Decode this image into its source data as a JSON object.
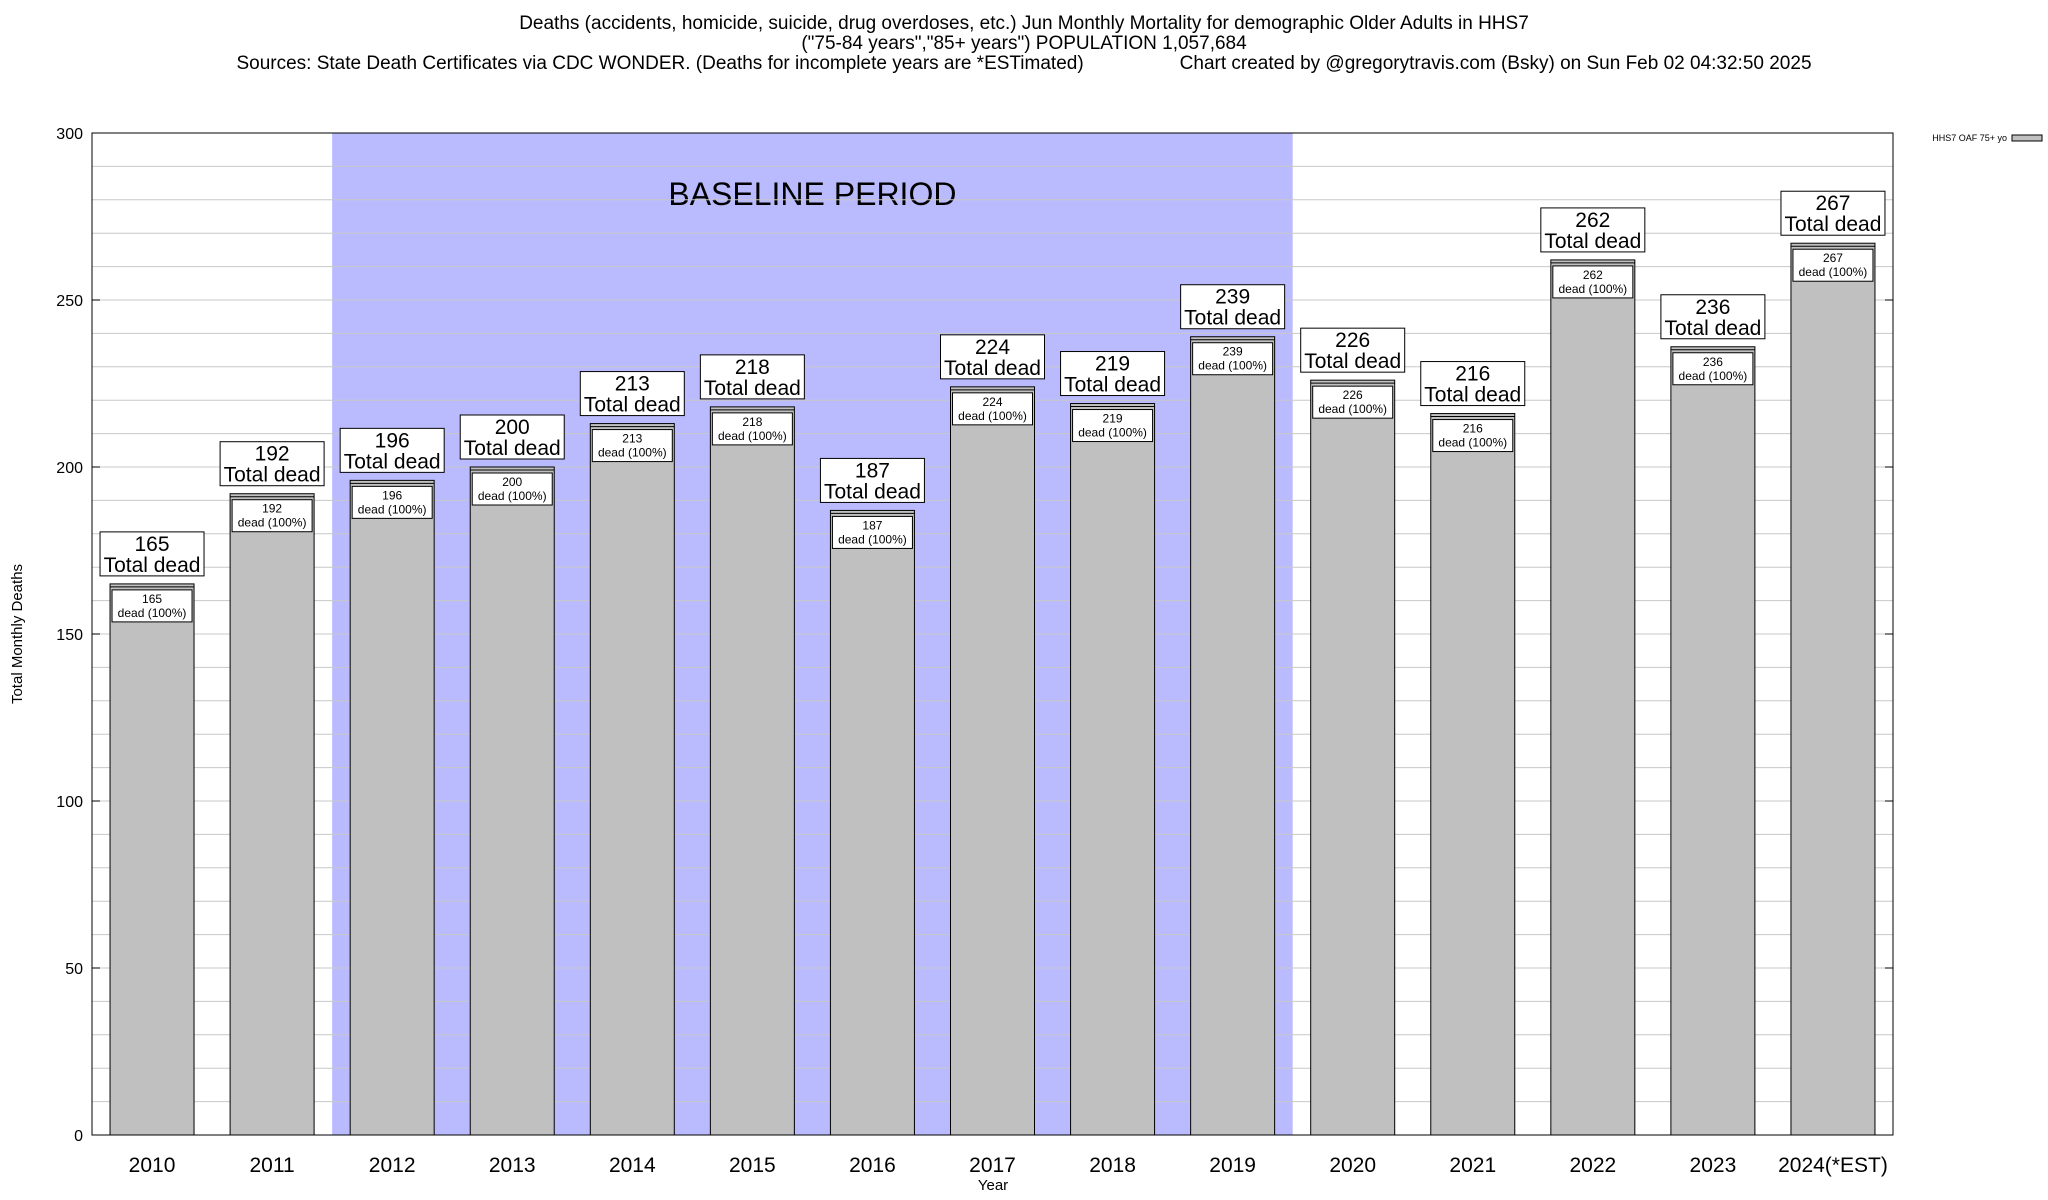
{
  "chart_data": {
    "type": "bar",
    "title": "Deaths (accidents, homicide, suicide, drug overdoses, etc.) Jun Monthly Mortality for demographic Older Adults in HHS7",
    "subtitle": "(\"75-84 years\",\"85+ years\") POPULATION 1,057,684",
    "sources": "Sources: State Death Certificates via CDC WONDER. (Deaths for incomplete years are *ESTimated)",
    "credit": "Chart created by @gregorytravis.com (Bsky) on Sun Feb 02 04:32:50 2025",
    "xlabel": "Year",
    "ylabel": "Total Monthly Deaths",
    "ylim": [
      0,
      300
    ],
    "yticks": [
      0,
      50,
      100,
      150,
      200,
      250,
      300
    ],
    "grid": true,
    "legend_position": "top-right",
    "categories": [
      "2010",
      "2011",
      "2012",
      "2013",
      "2014",
      "2015",
      "2016",
      "2017",
      "2018",
      "2019",
      "2020",
      "2021",
      "2022",
      "2023",
      "2024(*EST)"
    ],
    "series": [
      {
        "name": "HHS7 OAF 75+ yo",
        "values": [
          165,
          192,
          196,
          200,
          213,
          218,
          187,
          224,
          219,
          239,
          226,
          216,
          262,
          236,
          267
        ],
        "color": "#c0c0c0"
      }
    ],
    "total_label": "Total dead",
    "share_label": "dead (100%)",
    "baseline_period": {
      "label": "BASELINE PERIOD",
      "start": "2012",
      "end": "2019",
      "color": "#babaff"
    }
  }
}
